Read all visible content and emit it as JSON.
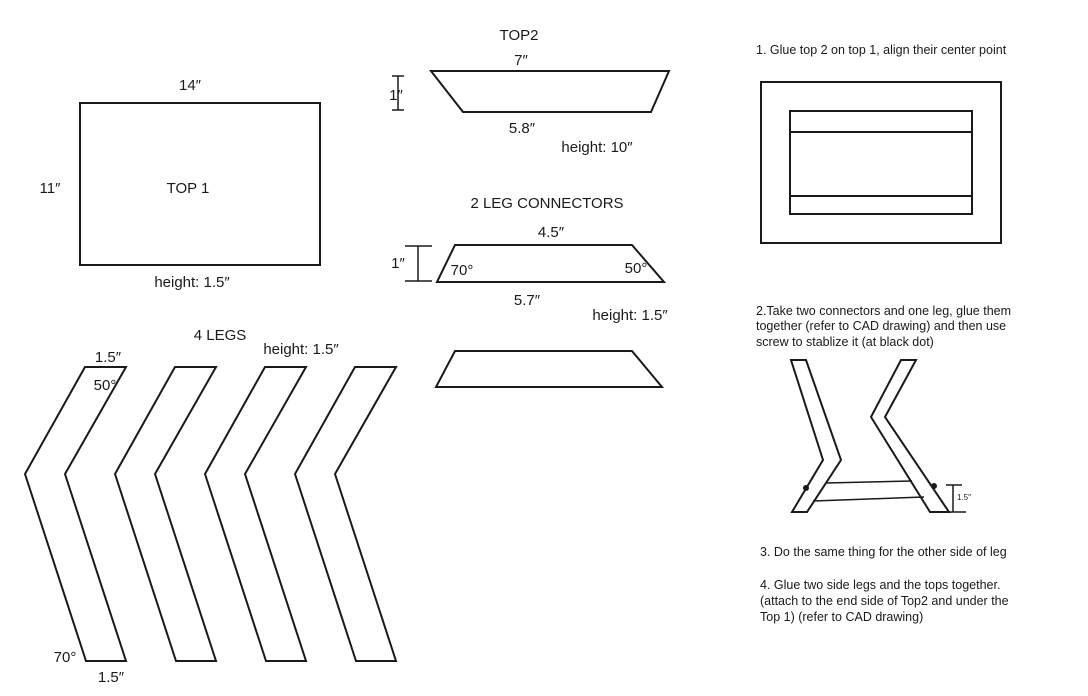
{
  "top1": {
    "width_label": "14″",
    "depth_label": "11″",
    "name": "TOP 1",
    "height_label": "height: 1.5″"
  },
  "top2": {
    "name": "TOP2",
    "top_label": "7″",
    "side_label": "1″",
    "bottom_label": "5.8″",
    "height_label": "height: 10″"
  },
  "connectors": {
    "name": "2 LEG CONNECTORS",
    "top_label": "4.5″",
    "side_label": "1″",
    "left_angle": "70°",
    "right_angle": "50°",
    "bottom_label": "5.7″",
    "height_label": "height: 1.5″"
  },
  "legs": {
    "name": "4 LEGS",
    "height_label": "height: 1.5″",
    "top_width_label": "1.5″",
    "top_angle": "50°",
    "bottom_angle": "70°",
    "bottom_width_label": "1.5″"
  },
  "steps": {
    "step1": "1. Glue top 2 on top 1, align their center point",
    "step2_lines": [
      "2.Take two connectors and one leg, glue them",
      "together (refer to CAD drawing) and then use",
      "screw to stablize it (at black dot)"
    ],
    "step2_dim": "1.5″",
    "step3": "3. Do the same thing for the other side of leg",
    "step4_lines": [
      "4. Glue two side legs and the tops together.",
      "(attach to the end side of Top2 and under the",
      "Top 1) (refer to CAD drawing)"
    ]
  }
}
